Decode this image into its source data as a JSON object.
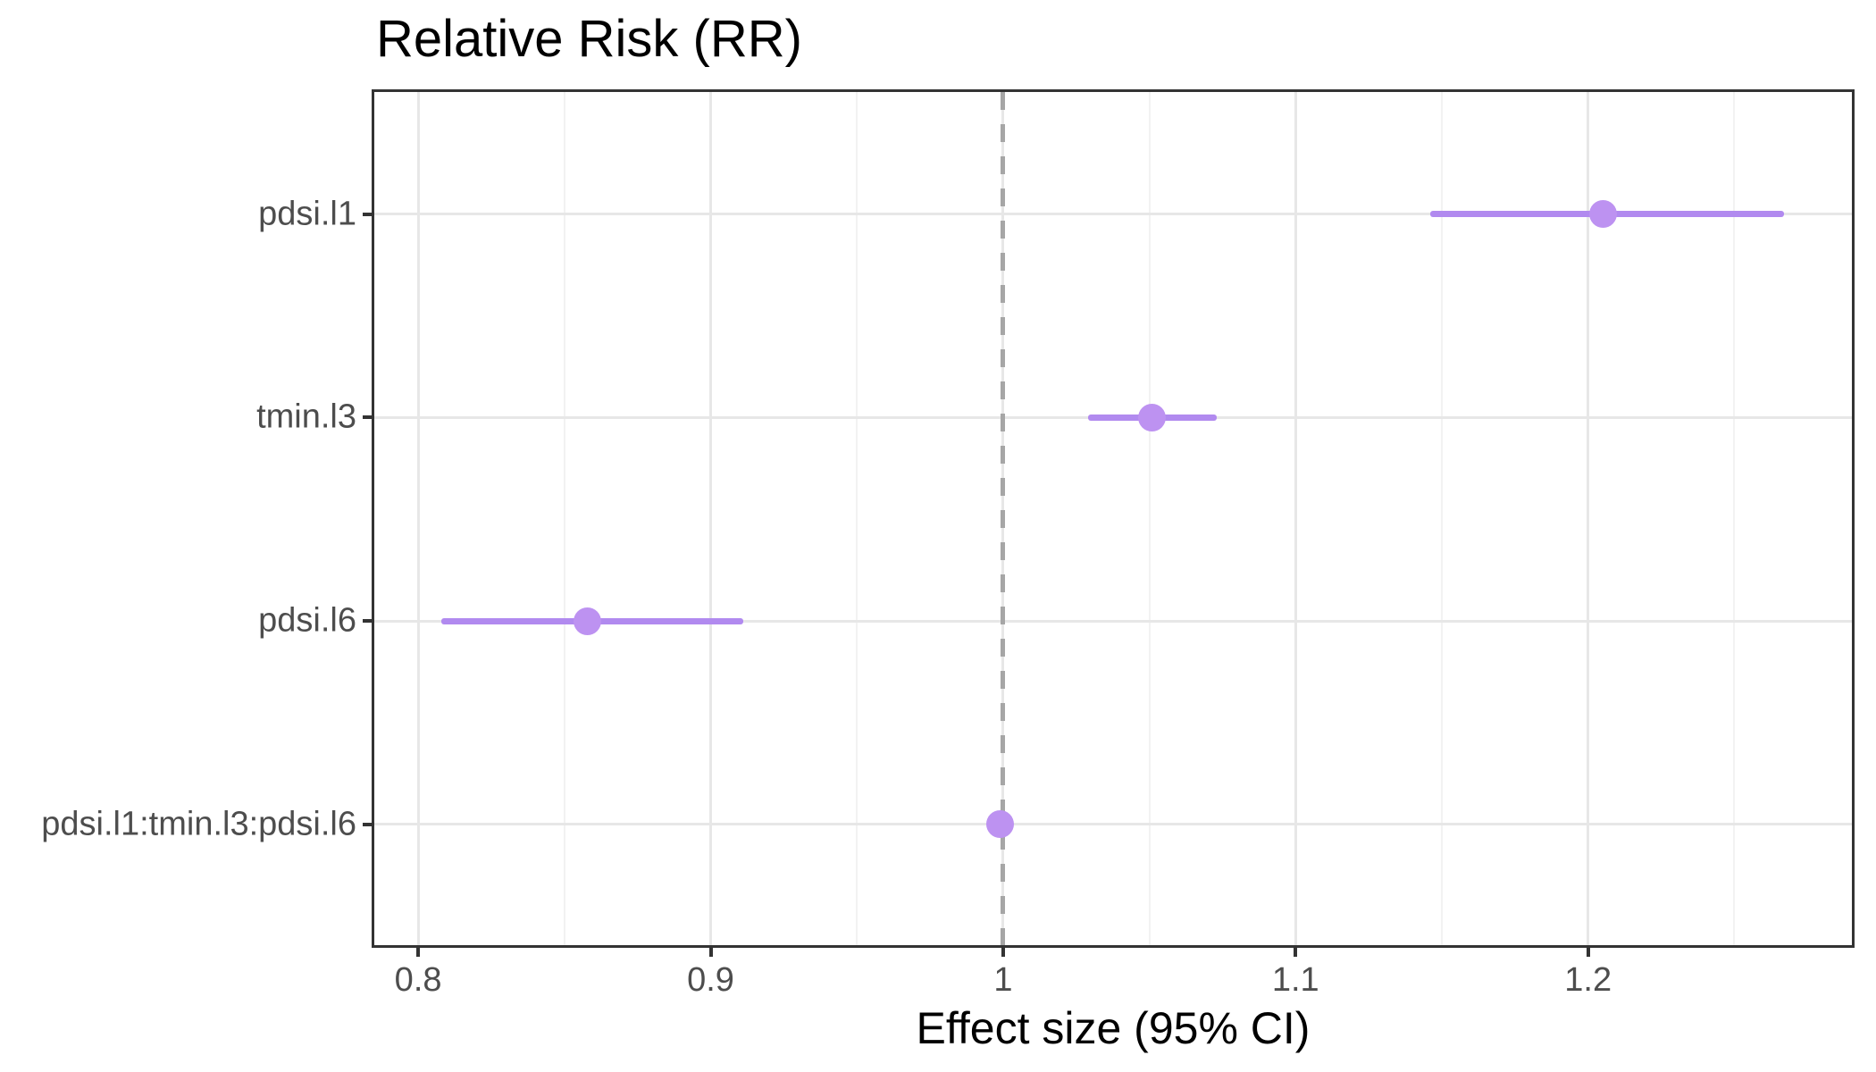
{
  "title": "Relative Risk (RR)",
  "x_axis_title": "Effect size (95% CI)",
  "chart_data": {
    "type": "scatter",
    "subtype": "forest-plot",
    "title": "Relative Risk (RR)",
    "xlabel": "Effect size (95% CI)",
    "ylabel": "",
    "xlim": [
      0.785,
      1.2902
    ],
    "x_ticks": [
      0.8,
      0.9,
      1.0,
      1.1,
      1.2
    ],
    "x_tick_labels": [
      "0.8",
      "0.9",
      "1",
      "1.1",
      "1.2"
    ],
    "x_minor_ticks": [
      0.85,
      0.95,
      1.05,
      1.15,
      1.25
    ],
    "categories": [
      "pdsi.l1",
      "tmin.l3",
      "pdsi.l6",
      "pdsi.l1:tmin.l3:pdsi.l6"
    ],
    "reference_line_x": 1.0,
    "series": [
      {
        "name": "pdsi.l1",
        "rr": 1.205,
        "ci_low": 1.146,
        "ci_high": 1.267
      },
      {
        "name": "tmin.l3",
        "rr": 1.051,
        "ci_low": 1.029,
        "ci_high": 1.073
      },
      {
        "name": "pdsi.l6",
        "rr": 0.858,
        "ci_low": 0.808,
        "ci_high": 0.911
      },
      {
        "name": "pdsi.l1:tmin.l3:pdsi.l6",
        "rr": 0.999,
        "ci_low": 0.996,
        "ci_high": 1.002
      }
    ],
    "grid": true,
    "legend_position": "none",
    "colors": {
      "point": "#bd92f1",
      "ci_line": "#b18aef",
      "reference_line": "#a6a6a6",
      "grid_major": "#e7e7e7",
      "grid_minor": "#f2f2f2",
      "panel_border": "#333333",
      "axis_text": "#4d4d4d",
      "title_text": "#000000"
    }
  }
}
